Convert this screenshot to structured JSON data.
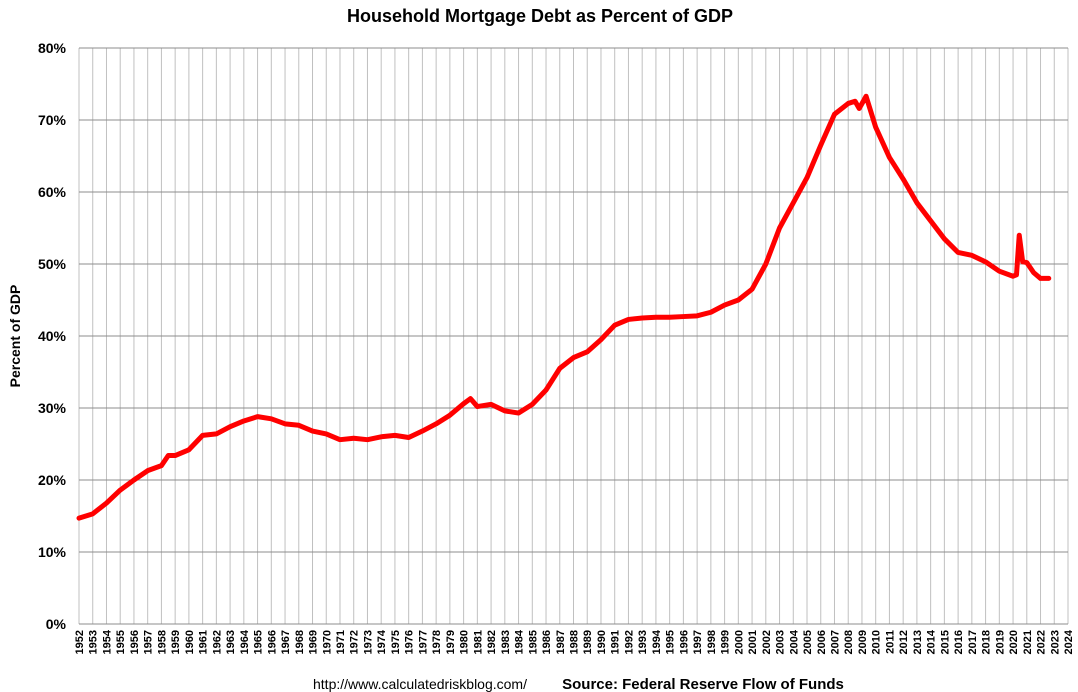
{
  "chart_data": {
    "type": "line",
    "title": "Household Mortgage Debt as Percent of GDP",
    "y_label": "Percent of GDP",
    "annotations": [
      "http://www.calculatedriskblog.com/",
      "Source: Federal Reserve Flow of Funds"
    ],
    "x": [
      1952,
      1953,
      1954,
      1955,
      1956,
      1957,
      1958,
      1958.5,
      1959,
      1960,
      1961,
      1962,
      1963,
      1964,
      1965,
      1966,
      1967,
      1968,
      1969,
      1970,
      1971,
      1972,
      1973,
      1974,
      1975,
      1976,
      1977,
      1978,
      1979,
      1980,
      1980.5,
      1981,
      1982,
      1983,
      1984,
      1985,
      1986,
      1987,
      1988,
      1989,
      1990,
      1991,
      1992,
      1993,
      1994,
      1995,
      1996,
      1997,
      1998,
      1999,
      2000,
      2001,
      2002,
      2003,
      2004,
      2005,
      2006,
      2007,
      2008,
      2008.5,
      2008.8,
      2009.3,
      2010,
      2011,
      2012,
      2013,
      2014,
      2015,
      2016,
      2017,
      2018,
      2019,
      2020,
      2020.25,
      2020.45,
      2020.7,
      2021,
      2021.5,
      2022,
      2022.6
    ],
    "series": [
      {
        "name": "Household Mortgage Debt",
        "color": "#ff0000",
        "values": [
          14.7,
          15.3,
          16.8,
          18.6,
          20,
          21.3,
          22,
          23.4,
          23.4,
          24.2,
          26.2,
          26.4,
          27.4,
          28.2,
          28.8,
          28.5,
          27.8,
          27.6,
          26.8,
          26.4,
          25.6,
          25.8,
          25.6,
          26.0,
          26.2,
          25.9,
          26.8,
          27.8,
          29,
          30.6,
          31.3,
          30.2,
          30.5,
          29.6,
          29.3,
          30.5,
          32.5,
          35.5,
          37,
          37.8,
          39.5,
          41.5,
          42.3,
          42.5,
          42.6,
          42.6,
          42.7,
          42.8,
          43.3,
          44.3,
          45,
          46.5,
          50,
          55,
          58.5,
          62,
          66.5,
          70.8,
          72.3,
          72.6,
          71.6,
          73.3,
          69,
          64.8,
          61.8,
          58.5,
          56,
          53.5,
          51.6,
          51.2,
          50.3,
          49,
          48.3,
          48.5,
          54,
          50.3,
          50.2,
          48.8,
          48,
          48
        ]
      }
    ],
    "xlim": [
      1952,
      2024
    ],
    "xticks": [
      1952,
      1953,
      1954,
      1955,
      1956,
      1957,
      1958,
      1959,
      1960,
      1961,
      1962,
      1963,
      1964,
      1965,
      1966,
      1967,
      1968,
      1969,
      1970,
      1971,
      1972,
      1973,
      1974,
      1975,
      1976,
      1977,
      1978,
      1979,
      1980,
      1981,
      1982,
      1983,
      1984,
      1985,
      1986,
      1987,
      1988,
      1989,
      1990,
      1991,
      1992,
      1993,
      1994,
      1995,
      1996,
      1997,
      1998,
      1999,
      2000,
      2001,
      2002,
      2003,
      2004,
      2005,
      2006,
      2007,
      2008,
      2009,
      2010,
      2011,
      2012,
      2013,
      2014,
      2015,
      2016,
      2017,
      2018,
      2019,
      2020,
      2021,
      2022,
      2023,
      2024
    ],
    "ylim": [
      0,
      80
    ],
    "yticks": [
      {
        "value": 0,
        "label": "0%"
      },
      {
        "value": 10,
        "label": "10%"
      },
      {
        "value": 20,
        "label": "20%"
      },
      {
        "value": 30,
        "label": "30%"
      },
      {
        "value": 40,
        "label": "40%"
      },
      {
        "value": 50,
        "label": "50%"
      },
      {
        "value": 60,
        "label": "60%"
      },
      {
        "value": 70,
        "label": "70%"
      },
      {
        "value": 80,
        "label": "80%"
      }
    ],
    "grid": true
  }
}
